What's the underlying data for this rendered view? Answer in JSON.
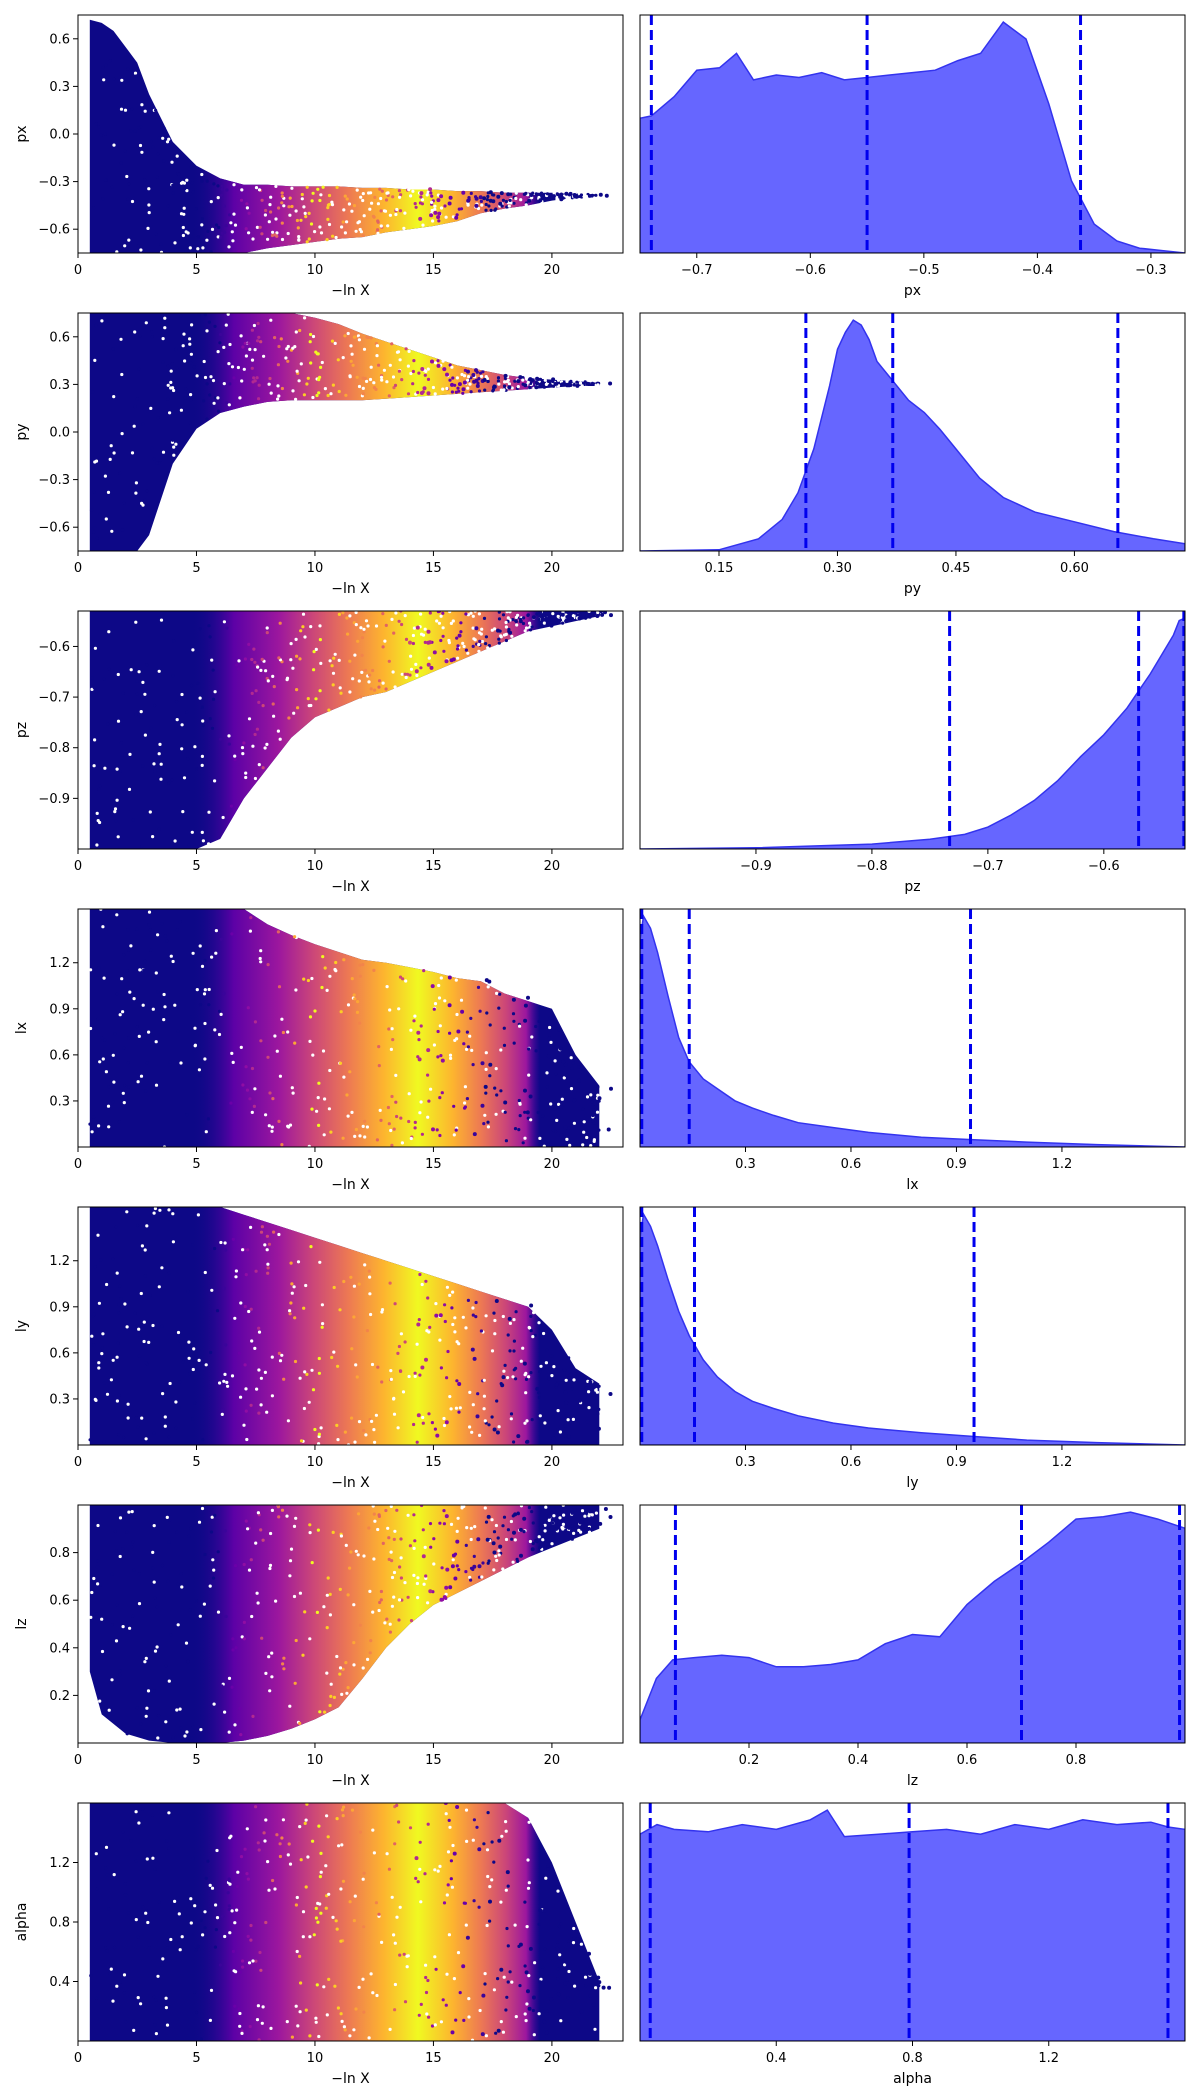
{
  "figure": {
    "background": "#ffffff",
    "point_cmap": "plasma",
    "kde_fill": "#6666ff",
    "kde_line": "#3333ee",
    "quantile_line": "#0000ee"
  },
  "chart_data": [
    {
      "type": "scatter",
      "param": "px",
      "xlabel": "−ln X",
      "ylabel": "px",
      "xlim": [
        0,
        23
      ],
      "ylim": [
        -0.75,
        0.75
      ],
      "xticks": [
        0,
        5,
        10,
        15,
        20
      ],
      "yticks": [
        -0.6,
        -0.3,
        0.0,
        0.3,
        0.6
      ],
      "ytick_labels": [
        "−0.6",
        "−0.3",
        "0.0",
        "0.3",
        "0.6"
      ],
      "x": [
        0.5,
        1,
        1.5,
        2,
        2.5,
        3,
        4,
        5,
        6,
        7,
        8,
        9,
        10,
        11,
        12,
        13,
        14,
        15,
        16,
        17,
        18,
        19,
        20,
        21,
        22
      ],
      "upper": [
        0.72,
        0.7,
        0.65,
        0.55,
        0.45,
        0.25,
        -0.05,
        -0.2,
        -0.28,
        -0.32,
        -0.32,
        -0.33,
        -0.33,
        -0.33,
        -0.34,
        -0.34,
        -0.35,
        -0.35,
        -0.36,
        -0.36,
        -0.37,
        -0.37,
        -0.37,
        -0.38,
        -0.38
      ],
      "lower": [
        -0.75,
        -0.75,
        -0.75,
        -0.75,
        -0.75,
        -0.75,
        -0.75,
        -0.75,
        -0.75,
        -0.75,
        -0.72,
        -0.7,
        -0.68,
        -0.66,
        -0.65,
        -0.62,
        -0.6,
        -0.58,
        -0.55,
        -0.5,
        -0.47,
        -0.45,
        -0.42,
        -0.4,
        -0.39
      ]
    },
    {
      "type": "area",
      "param": "px",
      "xlabel": "px",
      "xlim": [
        -0.75,
        -0.27
      ],
      "xticks": [
        -0.7,
        -0.6,
        -0.5,
        -0.4,
        -0.3
      ],
      "xtick_labels": [
        "−0.7",
        "−0.6",
        "−0.5",
        "−0.4",
        "−0.3"
      ],
      "x": [
        -0.75,
        -0.74,
        -0.72,
        -0.7,
        -0.68,
        -0.665,
        -0.65,
        -0.63,
        -0.61,
        -0.59,
        -0.57,
        -0.55,
        -0.53,
        -0.51,
        -0.49,
        -0.47,
        -0.45,
        -0.43,
        -0.41,
        -0.39,
        -0.37,
        -0.35,
        -0.33,
        -0.31,
        -0.29,
        -0.27
      ],
      "density": [
        0.56,
        0.57,
        0.65,
        0.76,
        0.77,
        0.83,
        0.72,
        0.74,
        0.73,
        0.75,
        0.72,
        0.73,
        0.74,
        0.75,
        0.76,
        0.8,
        0.83,
        0.96,
        0.89,
        0.62,
        0.3,
        0.12,
        0.05,
        0.02,
        0.01,
        0.0
      ],
      "quantiles": [
        -0.74,
        -0.55,
        -0.362
      ]
    },
    {
      "type": "scatter",
      "param": "py",
      "xlabel": "−ln X",
      "ylabel": "py",
      "xlim": [
        0,
        23
      ],
      "ylim": [
        -0.75,
        0.75
      ],
      "xticks": [
        0,
        5,
        10,
        15,
        20
      ],
      "yticks": [
        -0.6,
        -0.3,
        0.0,
        0.3,
        0.6
      ],
      "ytick_labels": [
        "−0.6",
        "−0.3",
        "0.0",
        "0.3",
        "0.6"
      ],
      "x": [
        0.5,
        1,
        1.5,
        2,
        2.5,
        3,
        4,
        5,
        6,
        7,
        8,
        9,
        10,
        11,
        12,
        13,
        14,
        15,
        16,
        17,
        18,
        19,
        20,
        21,
        22
      ],
      "upper": [
        0.75,
        0.75,
        0.75,
        0.75,
        0.75,
        0.75,
        0.75,
        0.75,
        0.75,
        0.75,
        0.75,
        0.75,
        0.72,
        0.68,
        0.62,
        0.57,
        0.52,
        0.47,
        0.42,
        0.39,
        0.36,
        0.34,
        0.33,
        0.32,
        0.31
      ],
      "lower": [
        -0.75,
        -0.75,
        -0.75,
        -0.75,
        -0.75,
        -0.65,
        -0.2,
        0.02,
        0.12,
        0.16,
        0.19,
        0.2,
        0.2,
        0.2,
        0.2,
        0.21,
        0.22,
        0.23,
        0.24,
        0.25,
        0.26,
        0.27,
        0.28,
        0.29,
        0.29
      ]
    },
    {
      "type": "area",
      "param": "py",
      "xlabel": "py",
      "xlim": [
        0.05,
        0.74
      ],
      "xticks": [
        0.15,
        0.3,
        0.45,
        0.6
      ],
      "xtick_labels": [
        "0.15",
        "0.30",
        "0.45",
        "0.60"
      ],
      "x": [
        0.05,
        0.15,
        0.2,
        0.23,
        0.25,
        0.27,
        0.29,
        0.3,
        0.31,
        0.32,
        0.33,
        0.34,
        0.35,
        0.37,
        0.39,
        0.41,
        0.43,
        0.45,
        0.48,
        0.51,
        0.55,
        0.6,
        0.65,
        0.7,
        0.74
      ],
      "density": [
        0.0,
        0.005,
        0.05,
        0.13,
        0.24,
        0.42,
        0.68,
        0.83,
        0.9,
        0.95,
        0.93,
        0.87,
        0.78,
        0.7,
        0.62,
        0.57,
        0.5,
        0.42,
        0.3,
        0.22,
        0.16,
        0.12,
        0.08,
        0.05,
        0.03
      ],
      "quantiles": [
        0.26,
        0.37,
        0.655
      ]
    },
    {
      "type": "scatter",
      "param": "pz",
      "xlabel": "−ln X",
      "ylabel": "pz",
      "xlim": [
        0,
        23
      ],
      "ylim": [
        -1.0,
        -0.53
      ],
      "xticks": [
        0,
        5,
        10,
        15,
        20
      ],
      "yticks": [
        -0.9,
        -0.8,
        -0.7,
        -0.6
      ],
      "ytick_labels": [
        "−0.9",
        "−0.8",
        "−0.7",
        "−0.6"
      ],
      "x": [
        0.5,
        1,
        2,
        3,
        4,
        5,
        6,
        7,
        8,
        9,
        10,
        11,
        12,
        13,
        14,
        15,
        16,
        17,
        18,
        19,
        20,
        21,
        22
      ],
      "upper": [
        -0.53,
        -0.53,
        -0.53,
        -0.53,
        -0.53,
        -0.53,
        -0.53,
        -0.53,
        -0.53,
        -0.53,
        -0.53,
        -0.53,
        -0.53,
        -0.53,
        -0.53,
        -0.53,
        -0.53,
        -0.53,
        -0.53,
        -0.53,
        -0.53,
        -0.53,
        -0.53
      ],
      "lower": [
        -1.0,
        -1.0,
        -1.0,
        -1.0,
        -1.0,
        -1.0,
        -0.98,
        -0.9,
        -0.84,
        -0.78,
        -0.74,
        -0.72,
        -0.7,
        -0.69,
        -0.67,
        -0.65,
        -0.63,
        -0.61,
        -0.59,
        -0.57,
        -0.56,
        -0.55,
        -0.54
      ]
    },
    {
      "type": "area",
      "param": "pz",
      "xlabel": "pz",
      "xlim": [
        -1.0,
        -0.53
      ],
      "xticks": [
        -0.9,
        -0.8,
        -0.7,
        -0.6
      ],
      "xtick_labels": [
        "−0.9",
        "−0.8",
        "−0.7",
        "−0.6"
      ],
      "x": [
        -1.0,
        -0.9,
        -0.8,
        -0.75,
        -0.72,
        -0.7,
        -0.68,
        -0.66,
        -0.64,
        -0.62,
        -0.6,
        -0.58,
        -0.56,
        -0.55,
        -0.54,
        -0.535,
        -0.53
      ],
      "density": [
        0.0,
        0.005,
        0.02,
        0.04,
        0.06,
        0.09,
        0.14,
        0.2,
        0.28,
        0.38,
        0.47,
        0.58,
        0.72,
        0.8,
        0.88,
        0.94,
        0.95
      ],
      "quantiles": [
        -0.733,
        -0.57,
        -0.531
      ]
    },
    {
      "type": "scatter",
      "param": "lx",
      "xlabel": "−ln X",
      "ylabel": "lx",
      "xlim": [
        0,
        23
      ],
      "ylim": [
        0,
        1.55
      ],
      "xticks": [
        0,
        5,
        10,
        15,
        20
      ],
      "yticks": [
        0.3,
        0.6,
        0.9,
        1.2
      ],
      "ytick_labels": [
        "0.3",
        "0.6",
        "0.9",
        "1.2"
      ],
      "x": [
        0.5,
        1,
        2,
        3,
        4,
        5,
        6,
        7,
        8,
        9,
        10,
        11,
        12,
        13,
        14,
        15,
        16,
        17,
        18,
        19,
        20,
        21,
        22
      ],
      "upper": [
        1.55,
        1.55,
        1.55,
        1.55,
        1.55,
        1.55,
        1.55,
        1.55,
        1.45,
        1.38,
        1.32,
        1.27,
        1.22,
        1.2,
        1.17,
        1.14,
        1.1,
        1.08,
        1.0,
        0.95,
        0.9,
        0.6,
        0.4
      ],
      "lower": [
        0.0,
        0.0,
        0.0,
        0.0,
        0.0,
        0.0,
        0.0,
        0.0,
        0.0,
        0.0,
        0.0,
        0.0,
        0.0,
        0.0,
        0.0,
        0.0,
        0.0,
        0.0,
        0.0,
        0.0,
        0.0,
        0.0,
        0.0
      ]
    },
    {
      "type": "area",
      "param": "lx",
      "xlabel": "lx",
      "xlim": [
        0,
        1.55
      ],
      "xticks": [
        0.3,
        0.6,
        0.9,
        1.2
      ],
      "xtick_labels": [
        "0.3",
        "0.6",
        "0.9",
        "1.2"
      ],
      "x": [
        0,
        0.01,
        0.03,
        0.05,
        0.08,
        0.11,
        0.14,
        0.18,
        0.22,
        0.27,
        0.32,
        0.38,
        0.45,
        0.55,
        0.65,
        0.8,
        0.95,
        1.1,
        1.3,
        1.55
      ],
      "density": [
        0.85,
        0.95,
        0.9,
        0.8,
        0.62,
        0.45,
        0.35,
        0.28,
        0.24,
        0.19,
        0.16,
        0.13,
        0.1,
        0.08,
        0.06,
        0.04,
        0.03,
        0.02,
        0.01,
        0.0
      ],
      "quantiles": [
        0.005,
        0.14,
        0.94
      ]
    },
    {
      "type": "scatter",
      "param": "ly",
      "xlabel": "−ln X",
      "ylabel": "ly",
      "xlim": [
        0,
        23
      ],
      "ylim": [
        0,
        1.55
      ],
      "xticks": [
        0,
        5,
        10,
        15,
        20
      ],
      "yticks": [
        0.3,
        0.6,
        0.9,
        1.2
      ],
      "ytick_labels": [
        "0.3",
        "0.6",
        "0.9",
        "1.2"
      ],
      "x": [
        0.5,
        1,
        2,
        3,
        4,
        5,
        6,
        7,
        8,
        9,
        10,
        11,
        12,
        13,
        14,
        15,
        16,
        17,
        18,
        19,
        20,
        21,
        22
      ],
      "upper": [
        1.55,
        1.55,
        1.55,
        1.55,
        1.55,
        1.55,
        1.55,
        1.5,
        1.45,
        1.4,
        1.35,
        1.3,
        1.25,
        1.2,
        1.15,
        1.1,
        1.05,
        1.0,
        0.95,
        0.9,
        0.75,
        0.5,
        0.4
      ],
      "lower": [
        0.0,
        0.0,
        0.0,
        0.0,
        0.0,
        0.0,
        0.0,
        0.0,
        0.0,
        0.0,
        0.0,
        0.0,
        0.0,
        0.0,
        0.0,
        0.0,
        0.0,
        0.0,
        0.0,
        0.0,
        0.0,
        0.0,
        0.0
      ]
    },
    {
      "type": "area",
      "param": "ly",
      "xlabel": "ly",
      "xlim": [
        0,
        1.55
      ],
      "xticks": [
        0.3,
        0.6,
        0.9,
        1.2
      ],
      "xtick_labels": [
        "0.3",
        "0.6",
        "0.9",
        "1.2"
      ],
      "x": [
        0,
        0.01,
        0.03,
        0.05,
        0.08,
        0.11,
        0.14,
        0.18,
        0.22,
        0.27,
        0.32,
        0.38,
        0.45,
        0.55,
        0.65,
        0.8,
        0.95,
        1.1,
        1.3,
        1.55
      ],
      "density": [
        0.85,
        0.95,
        0.9,
        0.82,
        0.68,
        0.55,
        0.45,
        0.35,
        0.28,
        0.22,
        0.18,
        0.15,
        0.12,
        0.09,
        0.07,
        0.05,
        0.035,
        0.02,
        0.01,
        0.0
      ],
      "quantiles": [
        0.005,
        0.155,
        0.95
      ]
    },
    {
      "type": "scatter",
      "param": "lz",
      "xlabel": "−ln X",
      "ylabel": "lz",
      "xlim": [
        0,
        23
      ],
      "ylim": [
        0,
        1.0
      ],
      "xticks": [
        0,
        5,
        10,
        15,
        20
      ],
      "yticks": [
        0.2,
        0.4,
        0.6,
        0.8
      ],
      "ytick_labels": [
        "0.2",
        "0.4",
        "0.6",
        "0.8"
      ],
      "x": [
        0.5,
        1,
        2,
        3,
        4,
        5,
        6,
        7,
        8,
        9,
        10,
        11,
        12,
        13,
        14,
        15,
        16,
        17,
        18,
        19,
        20,
        21,
        22
      ],
      "upper": [
        1.0,
        1.0,
        1.0,
        1.0,
        1.0,
        1.0,
        1.0,
        1.0,
        1.0,
        1.0,
        1.0,
        1.0,
        1.0,
        1.0,
        1.0,
        1.0,
        1.0,
        1.0,
        1.0,
        1.0,
        1.0,
        1.0,
        1.0
      ],
      "lower": [
        0.3,
        0.12,
        0.04,
        0.01,
        0.0,
        0.0,
        0.0,
        0.01,
        0.03,
        0.06,
        0.1,
        0.15,
        0.27,
        0.4,
        0.5,
        0.58,
        0.63,
        0.68,
        0.73,
        0.78,
        0.82,
        0.86,
        0.9
      ]
    },
    {
      "type": "area",
      "param": "lz",
      "xlabel": "lz",
      "xlim": [
        0,
        1.0
      ],
      "xticks": [
        0.2,
        0.4,
        0.6,
        0.8
      ],
      "xtick_labels": [
        "0.2",
        "0.4",
        "0.6",
        "0.8"
      ],
      "x": [
        0,
        0.03,
        0.06,
        0.1,
        0.15,
        0.2,
        0.25,
        0.3,
        0.35,
        0.4,
        0.45,
        0.5,
        0.55,
        0.6,
        0.65,
        0.7,
        0.75,
        0.8,
        0.85,
        0.9,
        0.95,
        1.0
      ],
      "density": [
        0.1,
        0.28,
        0.36,
        0.37,
        0.38,
        0.37,
        0.33,
        0.33,
        0.34,
        0.36,
        0.43,
        0.47,
        0.46,
        0.6,
        0.7,
        0.78,
        0.87,
        0.97,
        0.98,
        1.0,
        0.97,
        0.93
      ],
      "quantiles": [
        0.065,
        0.7,
        0.99
      ]
    },
    {
      "type": "scatter",
      "param": "alpha",
      "xlabel": "−ln X",
      "ylabel": "alpha",
      "xlim": [
        0,
        23
      ],
      "ylim": [
        0,
        1.6
      ],
      "xticks": [
        0,
        5,
        10,
        15,
        20
      ],
      "yticks": [
        0.4,
        0.8,
        1.2
      ],
      "ytick_labels": [
        "0.4",
        "0.8",
        "1.2"
      ],
      "x": [
        0.5,
        1,
        2,
        3,
        4,
        5,
        6,
        7,
        8,
        9,
        10,
        11,
        12,
        13,
        14,
        15,
        16,
        17,
        18,
        19,
        20,
        21,
        22
      ],
      "upper": [
        1.6,
        1.6,
        1.6,
        1.6,
        1.6,
        1.6,
        1.6,
        1.6,
        1.6,
        1.6,
        1.6,
        1.6,
        1.6,
        1.6,
        1.6,
        1.6,
        1.6,
        1.6,
        1.6,
        1.5,
        1.2,
        0.8,
        0.4
      ],
      "lower": [
        0.0,
        0.0,
        0.0,
        0.0,
        0.0,
        0.0,
        0.0,
        0.0,
        0.0,
        0.0,
        0.0,
        0.0,
        0.0,
        0.0,
        0.0,
        0.0,
        0.0,
        0.0,
        0.0,
        0.0,
        0.0,
        0.0,
        0.0
      ]
    },
    {
      "type": "area",
      "param": "alpha",
      "xlabel": "alpha",
      "xlim": [
        0,
        1.6
      ],
      "xticks": [
        0.4,
        0.8,
        1.2
      ],
      "xtick_labels": [
        "0.4",
        "0.8",
        "1.2"
      ],
      "x": [
        0,
        0.05,
        0.1,
        0.2,
        0.3,
        0.4,
        0.5,
        0.55,
        0.6,
        0.7,
        0.8,
        0.9,
        1.0,
        1.1,
        1.2,
        1.3,
        1.4,
        1.5,
        1.55,
        1.6
      ],
      "density": [
        0.86,
        0.9,
        0.88,
        0.87,
        0.9,
        0.88,
        0.92,
        0.96,
        0.85,
        0.86,
        0.87,
        0.88,
        0.86,
        0.9,
        0.88,
        0.92,
        0.9,
        0.91,
        0.89,
        0.88
      ],
      "quantiles": [
        0.03,
        0.79,
        1.55
      ]
    }
  ]
}
